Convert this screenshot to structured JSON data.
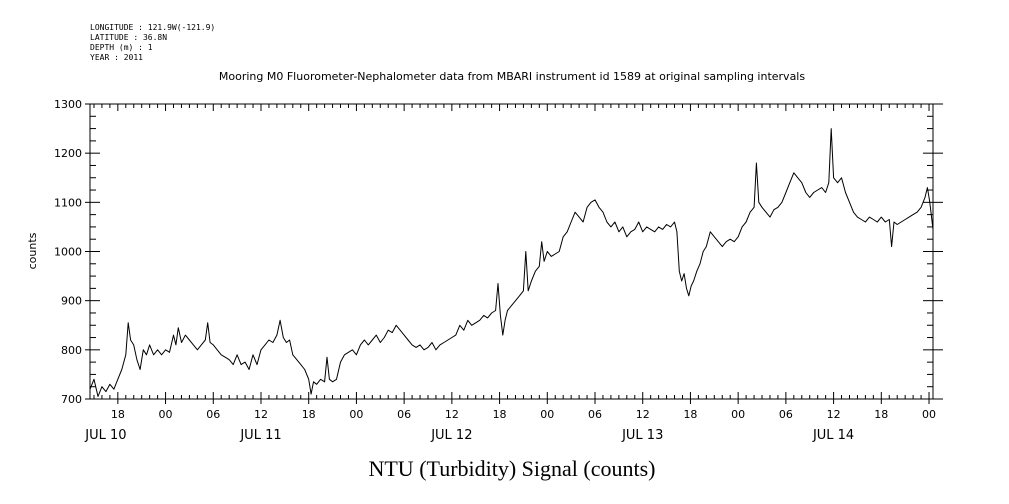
{
  "chart_data": {
    "type": "line",
    "meta_lines": [
      "LONGITUDE : 121.9W(-121.9)",
      "LATITUDE : 36.8N",
      "DEPTH (m) : 1",
      "YEAR : 2011"
    ],
    "title": "Mooring M0 Fluorometer-Nephalometer data from MBARI instrument id 1589 at original sampling intervals",
    "xlabel": "NTU (Turbidity) Signal (counts)",
    "ylabel": "counts",
    "x_unit": "hours since JUL 10 00:00 (2011)",
    "xlim": [
      14.5,
      120.5
    ],
    "ylim": [
      700,
      1300
    ],
    "yticks": [
      700,
      800,
      900,
      1000,
      1100,
      1200,
      1300
    ],
    "ytick_labels": [
      "700",
      "800",
      "900",
      "1000",
      "1100",
      "1200",
      "1300"
    ],
    "xticks": [
      18,
      24,
      30,
      36,
      42,
      48,
      54,
      60,
      66,
      72,
      78,
      84,
      90,
      96,
      102,
      108,
      114,
      120
    ],
    "xtick_labels": [
      "18",
      "00",
      "06",
      "12",
      "18",
      "00",
      "06",
      "12",
      "18",
      "00",
      "06",
      "12",
      "18",
      "00",
      "06",
      "12",
      "18",
      "00"
    ],
    "date_labels": [
      {
        "x": 16.5,
        "text": "JUL 10"
      },
      {
        "x": 36,
        "text": "JUL 11"
      },
      {
        "x": 60,
        "text": "JUL 12"
      },
      {
        "x": 84,
        "text": "JUL 13"
      },
      {
        "x": 108,
        "text": "JUL 14"
      }
    ],
    "grid": false,
    "series": [
      {
        "points": [
          [
            14.5,
            720
          ],
          [
            15.0,
            740
          ],
          [
            15.5,
            705
          ],
          [
            16.0,
            725
          ],
          [
            16.5,
            715
          ],
          [
            17.0,
            730
          ],
          [
            17.5,
            720
          ],
          [
            18.0,
            740
          ],
          [
            18.5,
            760
          ],
          [
            19.0,
            790
          ],
          [
            19.3,
            855
          ],
          [
            19.6,
            820
          ],
          [
            20.0,
            810
          ],
          [
            20.4,
            780
          ],
          [
            20.8,
            760
          ],
          [
            21.2,
            800
          ],
          [
            21.6,
            790
          ],
          [
            22.0,
            810
          ],
          [
            22.5,
            790
          ],
          [
            23.0,
            800
          ],
          [
            23.5,
            790
          ],
          [
            24.0,
            800
          ],
          [
            24.5,
            795
          ],
          [
            25.0,
            830
          ],
          [
            25.3,
            810
          ],
          [
            25.6,
            845
          ],
          [
            26.0,
            815
          ],
          [
            26.5,
            830
          ],
          [
            27.0,
            820
          ],
          [
            27.5,
            810
          ],
          [
            28.0,
            800
          ],
          [
            28.5,
            810
          ],
          [
            29.0,
            820
          ],
          [
            29.3,
            855
          ],
          [
            29.6,
            815
          ],
          [
            30.0,
            810
          ],
          [
            30.5,
            800
          ],
          [
            31.0,
            790
          ],
          [
            31.5,
            785
          ],
          [
            32.0,
            780
          ],
          [
            32.5,
            770
          ],
          [
            33.0,
            790
          ],
          [
            33.5,
            770
          ],
          [
            34.0,
            775
          ],
          [
            34.5,
            760
          ],
          [
            35.0,
            790
          ],
          [
            35.5,
            770
          ],
          [
            36.0,
            800
          ],
          [
            36.5,
            810
          ],
          [
            37.0,
            820
          ],
          [
            37.5,
            815
          ],
          [
            38.0,
            830
          ],
          [
            38.4,
            860
          ],
          [
            38.8,
            825
          ],
          [
            39.2,
            815
          ],
          [
            39.6,
            820
          ],
          [
            40.0,
            790
          ],
          [
            40.5,
            780
          ],
          [
            41.0,
            770
          ],
          [
            41.5,
            760
          ],
          [
            42.0,
            740
          ],
          [
            42.3,
            710
          ],
          [
            42.6,
            735
          ],
          [
            43.0,
            730
          ],
          [
            43.5,
            740
          ],
          [
            44.0,
            735
          ],
          [
            44.3,
            785
          ],
          [
            44.6,
            740
          ],
          [
            45.0,
            735
          ],
          [
            45.5,
            740
          ],
          [
            46.0,
            775
          ],
          [
            46.5,
            790
          ],
          [
            47.0,
            795
          ],
          [
            47.5,
            800
          ],
          [
            48.0,
            790
          ],
          [
            48.5,
            810
          ],
          [
            49.0,
            820
          ],
          [
            49.5,
            810
          ],
          [
            50.0,
            820
          ],
          [
            50.5,
            830
          ],
          [
            51.0,
            815
          ],
          [
            51.5,
            825
          ],
          [
            52.0,
            840
          ],
          [
            52.5,
            835
          ],
          [
            53.0,
            850
          ],
          [
            53.5,
            840
          ],
          [
            54.0,
            830
          ],
          [
            54.5,
            820
          ],
          [
            55.0,
            810
          ],
          [
            55.5,
            805
          ],
          [
            56.0,
            810
          ],
          [
            56.5,
            800
          ],
          [
            57.0,
            805
          ],
          [
            57.5,
            815
          ],
          [
            58.0,
            800
          ],
          [
            58.5,
            810
          ],
          [
            59.0,
            815
          ],
          [
            59.5,
            820
          ],
          [
            60.0,
            825
          ],
          [
            60.5,
            830
          ],
          [
            61.0,
            850
          ],
          [
            61.5,
            840
          ],
          [
            62.0,
            860
          ],
          [
            62.5,
            850
          ],
          [
            63.0,
            855
          ],
          [
            63.5,
            860
          ],
          [
            64.0,
            870
          ],
          [
            64.5,
            865
          ],
          [
            65.0,
            875
          ],
          [
            65.5,
            880
          ],
          [
            65.8,
            935
          ],
          [
            66.1,
            870
          ],
          [
            66.4,
            830
          ],
          [
            66.7,
            860
          ],
          [
            67.0,
            880
          ],
          [
            67.5,
            890
          ],
          [
            68.0,
            900
          ],
          [
            68.5,
            910
          ],
          [
            69.0,
            920
          ],
          [
            69.3,
            1000
          ],
          [
            69.6,
            920
          ],
          [
            70.0,
            940
          ],
          [
            70.5,
            960
          ],
          [
            71.0,
            970
          ],
          [
            71.3,
            1020
          ],
          [
            71.6,
            980
          ],
          [
            72.0,
            1000
          ],
          [
            72.5,
            990
          ],
          [
            73.0,
            995
          ],
          [
            73.5,
            1000
          ],
          [
            74.0,
            1030
          ],
          [
            74.5,
            1040
          ],
          [
            75.0,
            1060
          ],
          [
            75.5,
            1080
          ],
          [
            76.0,
            1070
          ],
          [
            76.5,
            1060
          ],
          [
            77.0,
            1090
          ],
          [
            77.5,
            1100
          ],
          [
            78.0,
            1105
          ],
          [
            78.5,
            1090
          ],
          [
            79.0,
            1080
          ],
          [
            79.5,
            1060
          ],
          [
            80.0,
            1050
          ],
          [
            80.5,
            1060
          ],
          [
            81.0,
            1040
          ],
          [
            81.5,
            1050
          ],
          [
            82.0,
            1030
          ],
          [
            82.5,
            1040
          ],
          [
            83.0,
            1045
          ],
          [
            83.5,
            1060
          ],
          [
            84.0,
            1040
          ],
          [
            84.5,
            1050
          ],
          [
            85.0,
            1045
          ],
          [
            85.5,
            1040
          ],
          [
            86.0,
            1050
          ],
          [
            86.5,
            1045
          ],
          [
            87.0,
            1055
          ],
          [
            87.5,
            1050
          ],
          [
            88.0,
            1060
          ],
          [
            88.3,
            1040
          ],
          [
            88.6,
            960
          ],
          [
            88.9,
            940
          ],
          [
            89.2,
            955
          ],
          [
            89.5,
            925
          ],
          [
            89.8,
            910
          ],
          [
            90.1,
            930
          ],
          [
            90.4,
            940
          ],
          [
            90.8,
            960
          ],
          [
            91.2,
            975
          ],
          [
            91.6,
            1000
          ],
          [
            92.0,
            1010
          ],
          [
            92.5,
            1040
          ],
          [
            93.0,
            1030
          ],
          [
            93.5,
            1020
          ],
          [
            94.0,
            1010
          ],
          [
            94.5,
            1020
          ],
          [
            95.0,
            1025
          ],
          [
            95.5,
            1020
          ],
          [
            96.0,
            1030
          ],
          [
            96.5,
            1050
          ],
          [
            97.0,
            1060
          ],
          [
            97.5,
            1080
          ],
          [
            98.0,
            1090
          ],
          [
            98.3,
            1180
          ],
          [
            98.6,
            1100
          ],
          [
            99.0,
            1090
          ],
          [
            99.5,
            1080
          ],
          [
            100.0,
            1070
          ],
          [
            100.5,
            1085
          ],
          [
            101.0,
            1090
          ],
          [
            101.5,
            1100
          ],
          [
            102.0,
            1120
          ],
          [
            102.5,
            1140
          ],
          [
            103.0,
            1160
          ],
          [
            103.5,
            1150
          ],
          [
            104.0,
            1140
          ],
          [
            104.5,
            1120
          ],
          [
            105.0,
            1110
          ],
          [
            105.5,
            1120
          ],
          [
            106.0,
            1125
          ],
          [
            106.5,
            1130
          ],
          [
            107.0,
            1120
          ],
          [
            107.4,
            1140
          ],
          [
            107.7,
            1250
          ],
          [
            108.0,
            1150
          ],
          [
            108.5,
            1140
          ],
          [
            109.0,
            1150
          ],
          [
            109.5,
            1120
          ],
          [
            110.0,
            1100
          ],
          [
            110.5,
            1080
          ],
          [
            111.0,
            1070
          ],
          [
            111.5,
            1065
          ],
          [
            112.0,
            1060
          ],
          [
            112.5,
            1070
          ],
          [
            113.0,
            1065
          ],
          [
            113.5,
            1060
          ],
          [
            114.0,
            1070
          ],
          [
            114.5,
            1060
          ],
          [
            115.0,
            1065
          ],
          [
            115.3,
            1010
          ],
          [
            115.6,
            1060
          ],
          [
            116.0,
            1055
          ],
          [
            116.5,
            1060
          ],
          [
            117.0,
            1065
          ],
          [
            117.5,
            1070
          ],
          [
            118.0,
            1075
          ],
          [
            118.5,
            1080
          ],
          [
            119.0,
            1090
          ],
          [
            119.5,
            1110
          ],
          [
            119.8,
            1130
          ],
          [
            120.1,
            1100
          ],
          [
            120.5,
            1045
          ]
        ]
      }
    ]
  }
}
